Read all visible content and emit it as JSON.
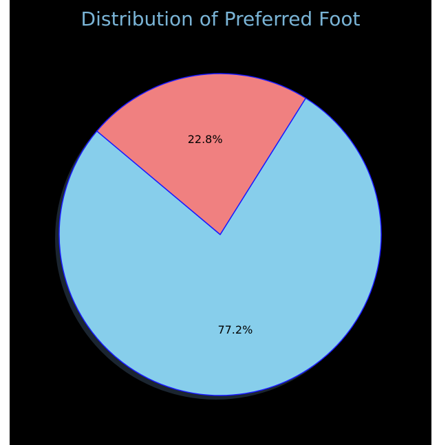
{
  "chart_data": {
    "type": "pie",
    "title": "Distribution of Preferred Foot",
    "slices": [
      {
        "label": "",
        "value": 77.2,
        "value_label": "77.2%",
        "color": "#87CEEB"
      },
      {
        "label": "",
        "value": 22.8,
        "value_label": "22.8%",
        "color": "#F08080"
      }
    ],
    "start_angle_deg": 140,
    "direction": "counterclockwise",
    "edge_color": "#1a1aff",
    "shadow": true,
    "background_color": "#000000",
    "title_color": "#7ab4d6",
    "legend": "none"
  }
}
